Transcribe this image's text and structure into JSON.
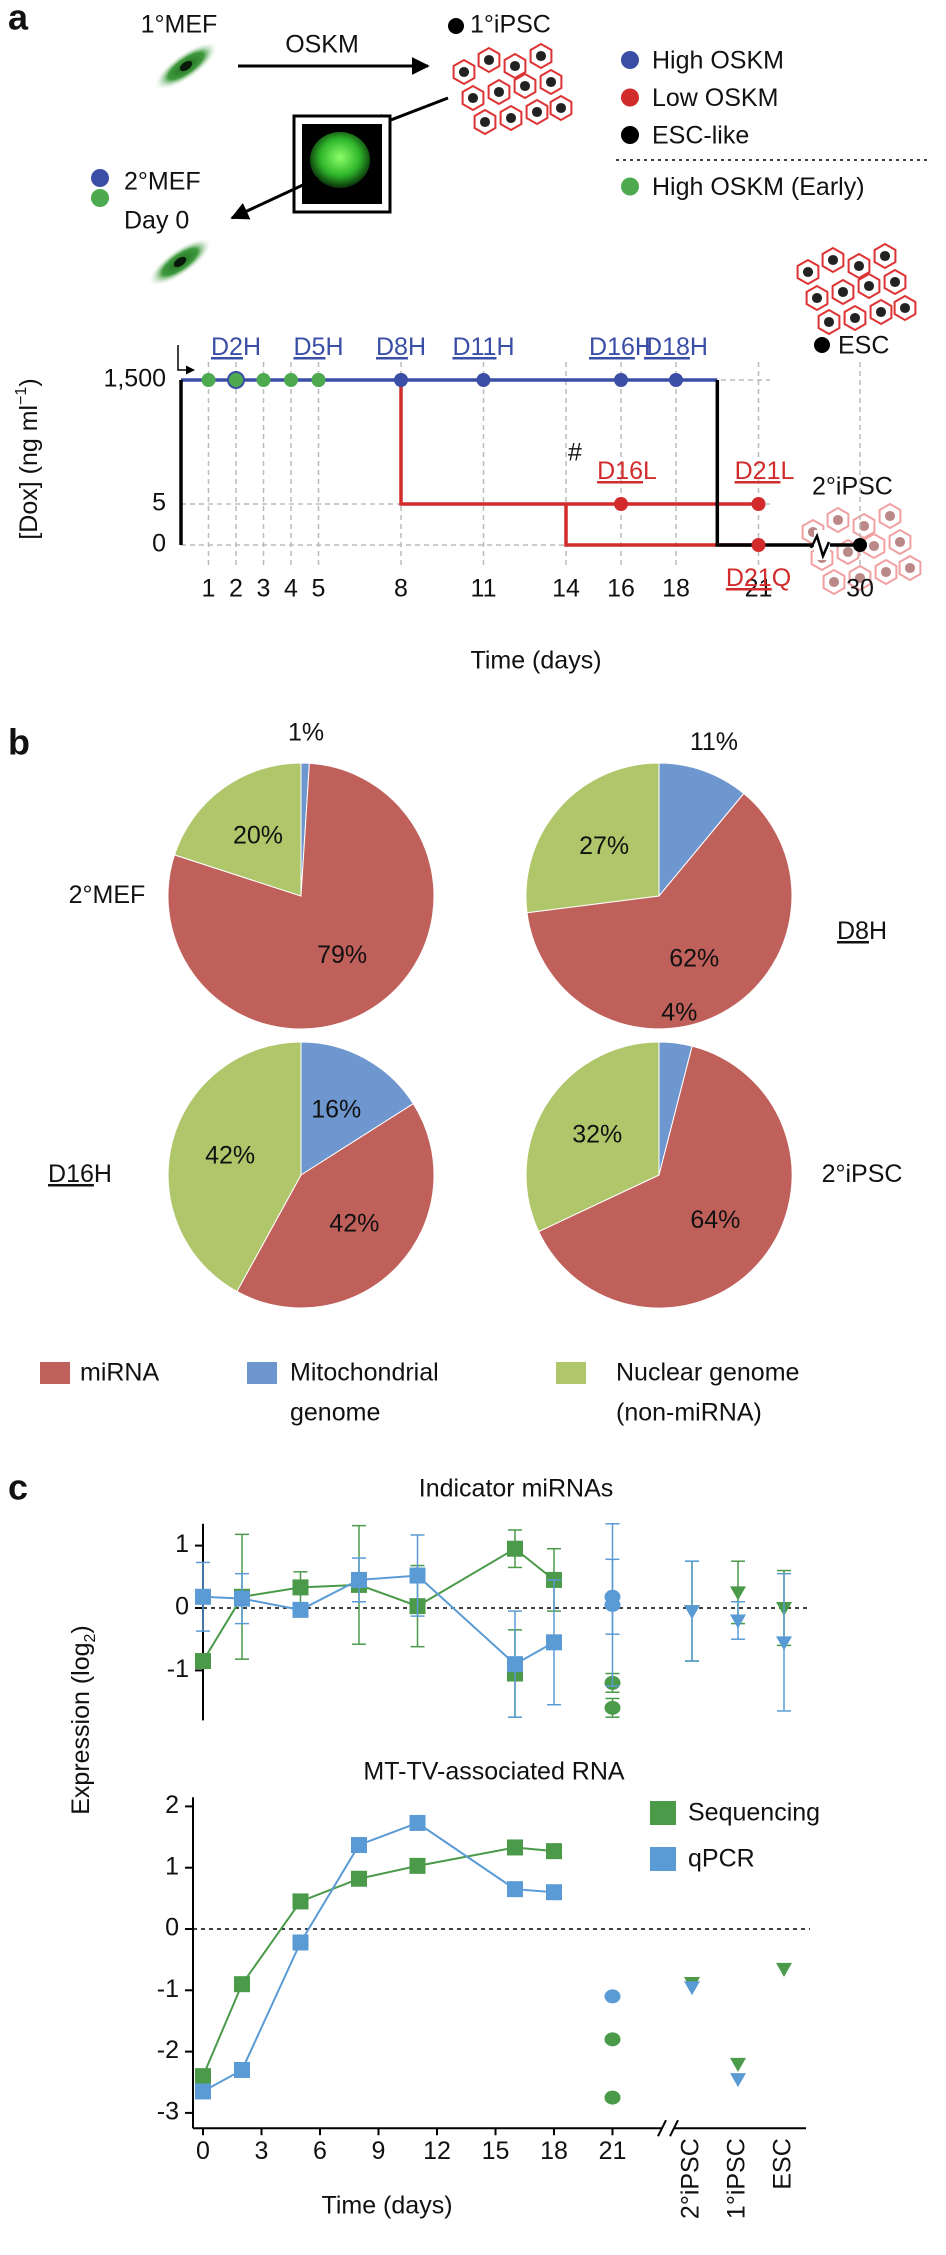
{
  "panel_labels": [
    "a",
    "b",
    "c"
  ],
  "diagram": {
    "mef1": "1°MEF",
    "oskm": "OSKM",
    "ipsc1": "1°iPSC",
    "mef2": "2°MEF",
    "day0": "Day 0",
    "esc": "ESC",
    "ipsc2": "2°iPSC"
  },
  "pie_legend": {
    "labels": [
      [
        "miRNA"
      ],
      [
        "Mitochondrial",
        "genome"
      ],
      [
        "Nuclear genome",
        "(non-miRNA)"
      ]
    ],
    "colors": [
      "#c0605a",
      "#6f97cf",
      "#afc66b"
    ]
  },
  "panel_c_y_label": [
    "Expression (log",
    "2",
    ")"
  ],
  "chart_data": [
    {
      "type": "step",
      "x_label": "Time (days)",
      "y_label": [
        "[Dox] (ng ml",
        "−1",
        ")"
      ],
      "xticks": [
        1,
        2,
        3,
        4,
        5,
        8,
        11,
        14,
        16,
        18,
        21,
        30
      ],
      "yticks": [
        0,
        5,
        {
          "value": 1500,
          "label": "1,500"
        }
      ],
      "grid": true,
      "series": [
        {
          "name": "High OSKM",
          "color": "#3a4ea6",
          "line_x": [
            0,
            19.5
          ],
          "line_values": [
            1500,
            1500
          ],
          "x": [
            2,
            5,
            8,
            11,
            16,
            18
          ],
          "values": [
            1500,
            1500,
            1500,
            1500,
            1500,
            1500
          ],
          "labels": [
            [
              "D2",
              "H"
            ],
            [
              "D5",
              "H"
            ],
            [
              "D8",
              "H"
            ],
            [
              "D11",
              "H"
            ],
            [
              "D16",
              "H"
            ],
            [
              "D18",
              "H"
            ]
          ]
        },
        {
          "name": "Low OSKM",
          "color": "#d12b2b",
          "line_x": [
            8,
            8,
            21,
            null,
            14,
            14,
            21
          ],
          "line_values": [
            1500,
            5,
            5,
            null,
            5,
            0,
            0
          ],
          "x": [
            16,
            21,
            21
          ],
          "values": [
            5,
            5,
            0
          ],
          "labels": [
            [
              "D16",
              "L"
            ],
            [
              "D21",
              "L"
            ],
            [
              "D21",
              "Q"
            ]
          ],
          "annotation": "#"
        },
        {
          "name": "ESC-like",
          "color": "#000000",
          "line_x": [
            0,
            0,
            null,
            19.5,
            19.5,
            30
          ],
          "line_values": [
            0,
            1500,
            null,
            1500,
            0,
            0
          ],
          "x": [
            30
          ],
          "values": [
            0
          ]
        },
        {
          "name": "High OSKM (Early)",
          "color": "#4eaa4e",
          "x": [
            1,
            2,
            3,
            4,
            5
          ],
          "values": [
            1500,
            1500,
            1500,
            1500,
            1500
          ]
        }
      ]
    },
    {
      "type": "pie",
      "title_parts": [
        "2°MEF"
      ],
      "values": [
        79,
        1,
        20
      ],
      "value_labels": [
        "79%",
        "1%",
        "20%"
      ]
    },
    {
      "type": "pie",
      "title_parts": [
        "D8",
        "H"
      ],
      "values": [
        62,
        11,
        27
      ],
      "value_labels": [
        "62%",
        "11%",
        "27%"
      ]
    },
    {
      "type": "pie",
      "title_parts": [
        "D16",
        "H"
      ],
      "values": [
        42,
        16,
        42
      ],
      "value_labels": [
        "42%",
        "16%",
        "42%"
      ]
    },
    {
      "type": "pie",
      "title_parts": [
        "2°iPSC"
      ],
      "values": [
        64,
        4,
        32
      ],
      "value_labels": [
        "64%",
        "4%",
        "32%"
      ]
    },
    {
      "type": "line",
      "title": "Indicator miRNAs",
      "ylim": [
        -1.8,
        1.35
      ],
      "yticks": [
        -1,
        0,
        1
      ],
      "x": [
        0,
        2,
        5,
        8,
        11,
        16,
        18
      ],
      "series": [
        {
          "color": "#4a9a4a",
          "values": [
            -0.85,
            0.18,
            0.33,
            0.37,
            0.03,
            0.95,
            0.45
          ],
          "errors": [
            0.1,
            1.0,
            0.25,
            0.95,
            0.65,
            0.3,
            0.5
          ],
          "late_x": [
            16,
            21,
            21
          ],
          "late_values": [
            -1.05,
            -1.2,
            -1.6
          ],
          "late_errors": [
            0.7,
            0.15,
            0.15
          ],
          "late_markers": [
            "square",
            "circle",
            "circle"
          ],
          "category_values": [
            -0.05,
            0.25,
            0.0
          ],
          "category_errors": [
            0.8,
            0.5,
            0.6
          ]
        },
        {
          "color": "#5b9bd5",
          "values": [
            0.18,
            0.15,
            -0.03,
            0.45,
            0.52,
            -0.9,
            -0.55
          ],
          "errors": [
            0.55,
            0.4,
            0.1,
            0.35,
            0.65,
            0.85,
            1.0
          ],
          "late_x": [
            21,
            21
          ],
          "late_values": [
            0.18,
            0.05
          ],
          "late_errors": [
            0.6,
            1.3
          ],
          "late_markers": [
            "circle",
            "circle"
          ],
          "category_values": [
            -0.05,
            -0.2,
            -0.55
          ],
          "category_errors": [
            0.8,
            0.3,
            1.1
          ]
        }
      ]
    },
    {
      "type": "line",
      "title": "MT-TV-associated RNA",
      "x_label": "Time (days)",
      "ylim": [
        -3.25,
        2.15
      ],
      "yticks": [
        -3,
        -2,
        -1,
        0,
        1,
        2
      ],
      "xticks": [
        0,
        3,
        6,
        9,
        12,
        15,
        18,
        21
      ],
      "categories": [
        "2°iPSC",
        "1°iPSC",
        "ESC"
      ],
      "x": [
        0,
        2,
        5,
        8,
        11,
        16,
        18
      ],
      "series": [
        {
          "name": "Sequencing",
          "color": "#4a9a4a",
          "values": [
            -2.4,
            -0.9,
            0.45,
            0.82,
            1.03,
            1.33,
            1.27
          ],
          "late_x": [
            21,
            21
          ],
          "late_values": [
            -1.8,
            -2.75
          ],
          "late_markers": [
            "circle",
            "circle"
          ],
          "category_values": [
            -0.88,
            -2.2,
            -0.65
          ]
        },
        {
          "name": "qPCR",
          "color": "#5b9bd5",
          "values": [
            -2.65,
            -2.3,
            -0.22,
            1.37,
            1.73,
            0.65,
            0.6
          ],
          "late_x": [
            21
          ],
          "late_values": [
            -1.1
          ],
          "late_markers": [
            "circle"
          ],
          "category_values": [
            -0.95,
            -2.45,
            null
          ]
        }
      ]
    }
  ]
}
